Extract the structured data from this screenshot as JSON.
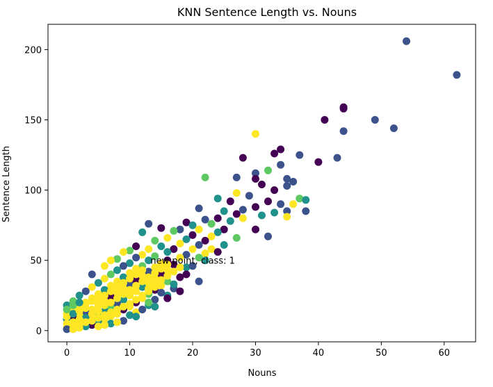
{
  "chart_data": {
    "type": "scatter",
    "title": "KNN Sentence Length vs. Nouns",
    "xlabel": "Nouns",
    "ylabel": "Sentence Length",
    "xlim": [
      -3,
      65
    ],
    "ylim": [
      -8,
      218
    ],
    "xticks": [
      0,
      10,
      20,
      30,
      40,
      50,
      60
    ],
    "yticks": [
      0,
      50,
      100,
      150,
      200
    ],
    "grid": false,
    "legend": "none",
    "colormap": "viridis",
    "class_colors": [
      "#440154",
      "#3b528b",
      "#21918c",
      "#5ec962",
      "#fde725"
    ],
    "annotation": {
      "text": "new point, class: 1",
      "x": 13.3,
      "y": 50
    },
    "points": [
      [
        54,
        206,
        1
      ],
      [
        62,
        182,
        1
      ],
      [
        44,
        159,
        0
      ],
      [
        44,
        158,
        0
      ],
      [
        41,
        150,
        0
      ],
      [
        49,
        150,
        1
      ],
      [
        52,
        144,
        1
      ],
      [
        44,
        142,
        1
      ],
      [
        30,
        140,
        4
      ],
      [
        34,
        129,
        0
      ],
      [
        37,
        125,
        1
      ],
      [
        33,
        126,
        0
      ],
      [
        43,
        123,
        1
      ],
      [
        28,
        123,
        0
      ],
      [
        40,
        120,
        0
      ],
      [
        34,
        118,
        1
      ],
      [
        32,
        114,
        3
      ],
      [
        30,
        112,
        1
      ],
      [
        30,
        108,
        0
      ],
      [
        35,
        108,
        1
      ],
      [
        27,
        109,
        1
      ],
      [
        36,
        106,
        1
      ],
      [
        22,
        109,
        3
      ],
      [
        31,
        104,
        0
      ],
      [
        35,
        103,
        1
      ],
      [
        33,
        100,
        0
      ],
      [
        27,
        98,
        4
      ],
      [
        29,
        96,
        1
      ],
      [
        24,
        94,
        2
      ],
      [
        37,
        94,
        3
      ],
      [
        38,
        93,
        2
      ],
      [
        32,
        92,
        0
      ],
      [
        36,
        90,
        4
      ],
      [
        34,
        90,
        1
      ],
      [
        26,
        92,
        0
      ],
      [
        30,
        88,
        0
      ],
      [
        28,
        86,
        1
      ],
      [
        21,
        87,
        1
      ],
      [
        25,
        85,
        2
      ],
      [
        33,
        84,
        2
      ],
      [
        35,
        85,
        1
      ],
      [
        38,
        85,
        1
      ],
      [
        27,
        83,
        0
      ],
      [
        31,
        82,
        2
      ],
      [
        35,
        81,
        4
      ],
      [
        24,
        80,
        0
      ],
      [
        28,
        80,
        4
      ],
      [
        22,
        79,
        1
      ],
      [
        26,
        78,
        2
      ],
      [
        19,
        77,
        0
      ],
      [
        20,
        75,
        2
      ],
      [
        23,
        76,
        3
      ],
      [
        13,
        76,
        1
      ],
      [
        15,
        73,
        0
      ],
      [
        18,
        72,
        1
      ],
      [
        21,
        72,
        4
      ],
      [
        25,
        72,
        0
      ],
      [
        30,
        72,
        0
      ],
      [
        12,
        70,
        2
      ],
      [
        17,
        71,
        3
      ],
      [
        24,
        70,
        2
      ],
      [
        20,
        68,
        0
      ],
      [
        23,
        67,
        4
      ],
      [
        27,
        66,
        3
      ],
      [
        32,
        67,
        1
      ],
      [
        16,
        66,
        4
      ],
      [
        19,
        65,
        2
      ],
      [
        22,
        64,
        0
      ],
      [
        14,
        64,
        3
      ],
      [
        18,
        62,
        4
      ],
      [
        21,
        61,
        1
      ],
      [
        25,
        61,
        2
      ],
      [
        11,
        60,
        0
      ],
      [
        15,
        60,
        2
      ],
      [
        13,
        58,
        4
      ],
      [
        17,
        58,
        0
      ],
      [
        20,
        58,
        4
      ],
      [
        23,
        58,
        4
      ],
      [
        10,
        57,
        3
      ],
      [
        16,
        56,
        2
      ],
      [
        22,
        55,
        4
      ],
      [
        19,
        54,
        1
      ],
      [
        12,
        54,
        4
      ],
      [
        14,
        53,
        3
      ],
      [
        9,
        56,
        4
      ],
      [
        18,
        52,
        4
      ],
      [
        21,
        52,
        3
      ],
      [
        11,
        52,
        1
      ],
      [
        16,
        50,
        0
      ],
      [
        13,
        50,
        2
      ],
      [
        8,
        51,
        3
      ],
      [
        7,
        50,
        4
      ],
      [
        15,
        48,
        4
      ],
      [
        10,
        48,
        2
      ],
      [
        17,
        47,
        0
      ],
      [
        12,
        46,
        3
      ],
      [
        9,
        46,
        1
      ],
      [
        6,
        46,
        4
      ],
      [
        14,
        45,
        4
      ],
      [
        19,
        45,
        2
      ],
      [
        11,
        44,
        4
      ],
      [
        16,
        43,
        4
      ],
      [
        8,
        43,
        2
      ],
      [
        13,
        42,
        1
      ],
      [
        4,
        40,
        1
      ],
      [
        10,
        41,
        4
      ],
      [
        15,
        40,
        0
      ],
      [
        7,
        40,
        3
      ],
      [
        12,
        39,
        4
      ],
      [
        18,
        38,
        0
      ],
      [
        9,
        38,
        2
      ],
      [
        14,
        37,
        4
      ],
      [
        6,
        37,
        4
      ],
      [
        11,
        36,
        0
      ],
      [
        16,
        35,
        3
      ],
      [
        8,
        35,
        4
      ],
      [
        5,
        34,
        2
      ],
      [
        13,
        34,
        4
      ],
      [
        10,
        33,
        1
      ],
      [
        15,
        32,
        4
      ],
      [
        7,
        32,
        4
      ],
      [
        12,
        31,
        2
      ],
      [
        4,
        31,
        4
      ],
      [
        9,
        30,
        4
      ],
      [
        17,
        30,
        1
      ],
      [
        14,
        29,
        0
      ],
      [
        6,
        29,
        2
      ],
      [
        11,
        28,
        4
      ],
      [
        3,
        28,
        1
      ],
      [
        8,
        27,
        4
      ],
      [
        13,
        26,
        3
      ],
      [
        5,
        26,
        4
      ],
      [
        16,
        25,
        2
      ],
      [
        10,
        25,
        4
      ],
      [
        2,
        25,
        2
      ],
      [
        7,
        24,
        0
      ],
      [
        12,
        23,
        4
      ],
      [
        4,
        23,
        4
      ],
      [
        9,
        22,
        2
      ],
      [
        14,
        22,
        1
      ],
      [
        6,
        21,
        4
      ],
      [
        1,
        21,
        3
      ],
      [
        11,
        20,
        0
      ],
      [
        3,
        20,
        4
      ],
      [
        8,
        19,
        1
      ],
      [
        5,
        18,
        4
      ],
      [
        13,
        18,
        2
      ],
      [
        0,
        18,
        2
      ],
      [
        10,
        17,
        4
      ],
      [
        2,
        17,
        4
      ],
      [
        7,
        16,
        3
      ],
      [
        4,
        15,
        4
      ],
      [
        9,
        15,
        0
      ],
      [
        1,
        14,
        4
      ],
      [
        6,
        14,
        2
      ],
      [
        11,
        13,
        4
      ],
      [
        3,
        13,
        1
      ],
      [
        0,
        12,
        4
      ],
      [
        8,
        12,
        4
      ],
      [
        5,
        11,
        3
      ],
      [
        2,
        11,
        4
      ],
      [
        10,
        11,
        2
      ],
      [
        7,
        10,
        4
      ],
      [
        1,
        9,
        0
      ],
      [
        4,
        9,
        4
      ],
      [
        0,
        8,
        2
      ],
      [
        6,
        8,
        4
      ],
      [
        3,
        7,
        4
      ],
      [
        9,
        7,
        1
      ],
      [
        1,
        6,
        4
      ],
      [
        5,
        6,
        2
      ],
      [
        0,
        5,
        4
      ],
      [
        2,
        5,
        4
      ],
      [
        4,
        4,
        0
      ],
      [
        1,
        3,
        4
      ],
      [
        3,
        3,
        2
      ],
      [
        0,
        2,
        4
      ],
      [
        2,
        2,
        4
      ],
      [
        0,
        1,
        1
      ],
      [
        1,
        1,
        4
      ],
      [
        5,
        3,
        4
      ],
      [
        7,
        5,
        2
      ],
      [
        8,
        6,
        4
      ],
      [
        6,
        4,
        4
      ],
      [
        3,
        9,
        2
      ],
      [
        2,
        8,
        4
      ],
      [
        0,
        10,
        4
      ],
      [
        1,
        12,
        2
      ],
      [
        4,
        12,
        4
      ],
      [
        5,
        14,
        4
      ],
      [
        3,
        16,
        4
      ],
      [
        6,
        18,
        4
      ],
      [
        7,
        20,
        4
      ],
      [
        2,
        14,
        4
      ],
      [
        8,
        23,
        4
      ],
      [
        9,
        26,
        4
      ],
      [
        10,
        29,
        4
      ],
      [
        11,
        32,
        4
      ],
      [
        12,
        35,
        4
      ],
      [
        13,
        38,
        4
      ],
      [
        14,
        41,
        4
      ],
      [
        15,
        44,
        4
      ],
      [
        16,
        47,
        4
      ],
      [
        5,
        22,
        4
      ],
      [
        6,
        25,
        4
      ],
      [
        7,
        28,
        4
      ],
      [
        8,
        31,
        4
      ],
      [
        9,
        34,
        4
      ],
      [
        10,
        37,
        4
      ],
      [
        11,
        40,
        4
      ],
      [
        12,
        43,
        4
      ],
      [
        3,
        19,
        4
      ],
      [
        4,
        21,
        4
      ],
      [
        13,
        30,
        4
      ],
      [
        14,
        33,
        4
      ],
      [
        15,
        36,
        4
      ],
      [
        16,
        39,
        4
      ],
      [
        17,
        42,
        4
      ],
      [
        18,
        45,
        4
      ],
      [
        2,
        4,
        4
      ],
      [
        3,
        6,
        4
      ],
      [
        4,
        7,
        4
      ],
      [
        5,
        9,
        4
      ],
      [
        6,
        11,
        4
      ],
      [
        7,
        13,
        4
      ],
      [
        8,
        15,
        4
      ],
      [
        9,
        17,
        4
      ],
      [
        10,
        19,
        4
      ],
      [
        11,
        22,
        4
      ],
      [
        12,
        25,
        4
      ],
      [
        13,
        28,
        4
      ],
      [
        14,
        31,
        4
      ],
      [
        1,
        18,
        3
      ],
      [
        2,
        20,
        2
      ],
      [
        0,
        15,
        3
      ],
      [
        12,
        15,
        1
      ],
      [
        11,
        10,
        2
      ],
      [
        13,
        20,
        3
      ],
      [
        15,
        27,
        1
      ],
      [
        17,
        33,
        2
      ],
      [
        19,
        40,
        0
      ],
      [
        20,
        46,
        1
      ],
      [
        22,
        50,
        2
      ],
      [
        24,
        56,
        0
      ],
      [
        18,
        28,
        0
      ],
      [
        21,
        35,
        1
      ],
      [
        14,
        17,
        2
      ],
      [
        16,
        23,
        0
      ]
    ]
  }
}
